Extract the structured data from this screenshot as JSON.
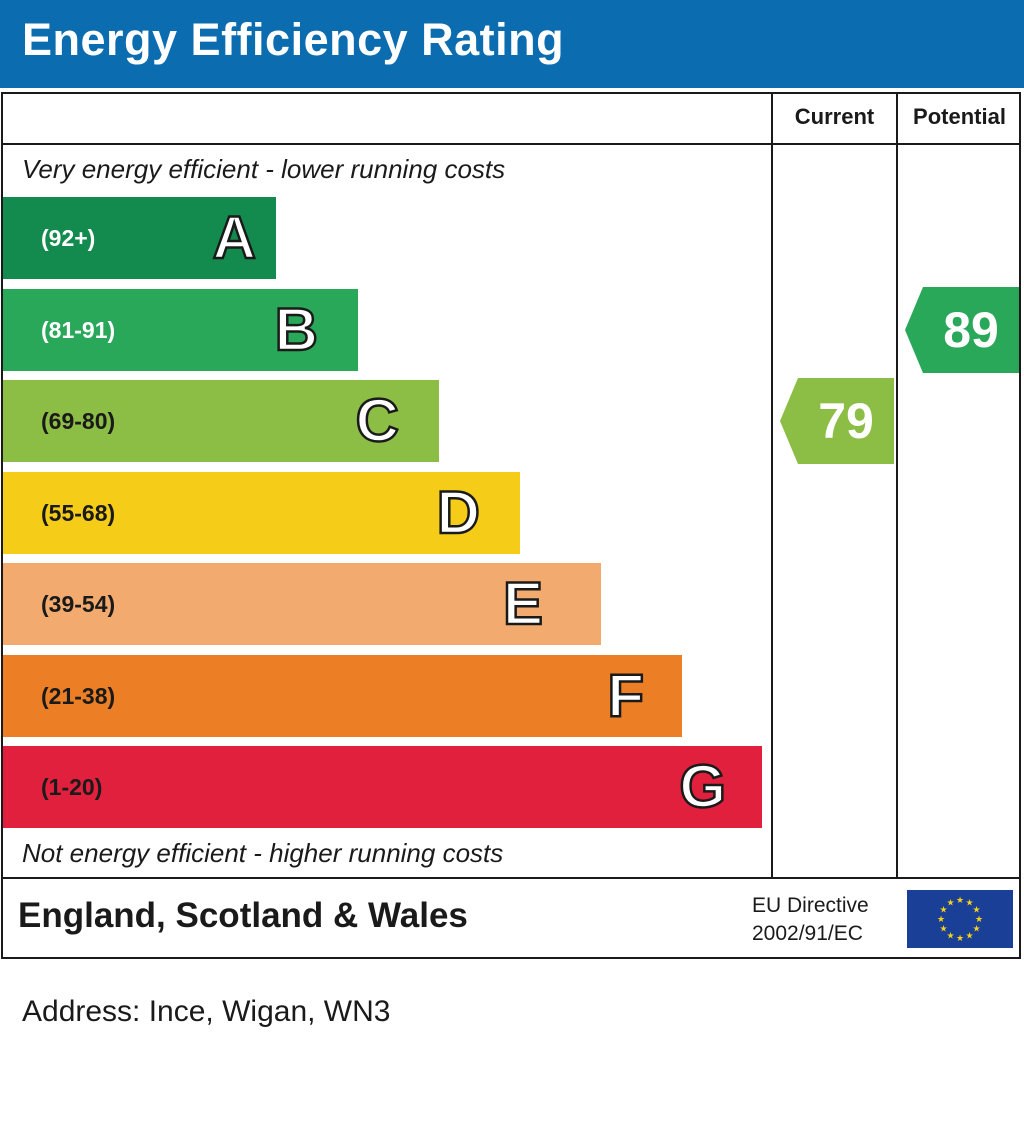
{
  "header": {
    "title": "Energy Efficiency Rating"
  },
  "columns": {
    "current": "Current",
    "potential": "Potential"
  },
  "captions": {
    "top": "Very energy efficient - lower running costs",
    "bottom": "Not energy efficient - higher running costs"
  },
  "footer": {
    "region": "England, Scotland & Wales",
    "directive_line1": "EU Directive",
    "directive_line2": "2002/91/EC"
  },
  "address": "Address: Ince, Wigan, WN3",
  "chart_data": {
    "type": "bar",
    "title": "Energy Efficiency Rating",
    "bands": [
      {
        "letter": "A",
        "range": "(92+)",
        "min": 92,
        "max": 100,
        "color": "#138a4e",
        "text_color": "#ffffff"
      },
      {
        "letter": "B",
        "range": "(81-91)",
        "min": 81,
        "max": 91,
        "color": "#2aa85a",
        "text_color": "#ffffff"
      },
      {
        "letter": "C",
        "range": "(69-80)",
        "min": 69,
        "max": 80,
        "color": "#8cbd44",
        "text_color": "#1a1a1a"
      },
      {
        "letter": "D",
        "range": "(55-68)",
        "min": 55,
        "max": 68,
        "color": "#f5cd19",
        "text_color": "#1a1a1a"
      },
      {
        "letter": "E",
        "range": "(39-54)",
        "min": 39,
        "max": 54,
        "color": "#f2aa6e",
        "text_color": "#1a1a1a"
      },
      {
        "letter": "F",
        "range": "(21-38)",
        "min": 21,
        "max": 38,
        "color": "#ec7f26",
        "text_color": "#1a1a1a"
      },
      {
        "letter": "G",
        "range": "(1-20)",
        "min": 1,
        "max": 20,
        "color": "#e1203d",
        "text_color": "#1a1a1a"
      }
    ],
    "current": {
      "value": 79,
      "band": "C",
      "color": "#8cbd44"
    },
    "potential": {
      "value": 89,
      "band": "B",
      "color": "#2aa85a"
    }
  }
}
